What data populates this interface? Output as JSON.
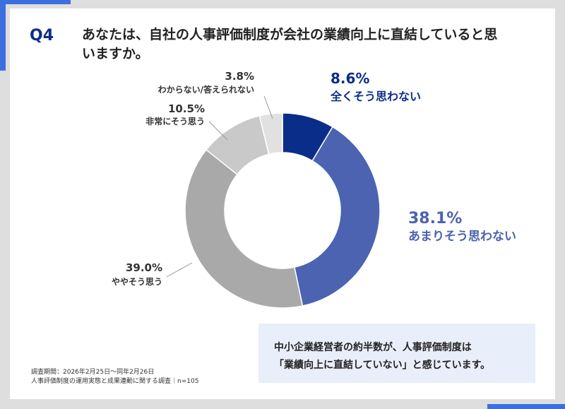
{
  "question_label": "Q4",
  "chart_data": {
    "type": "pie",
    "title": "あなたは、自社の人事評価制度が会社の業績向上に直結していると思いますか。",
    "categories": [
      "全くそう思わない",
      "あまりそう思わない",
      "ややそう思う",
      "非常にそう思う",
      "わからない/答えられない"
    ],
    "values": [
      8.6,
      38.1,
      39.0,
      10.5,
      3.8
    ],
    "value_labels": [
      "8.6%",
      "38.1%",
      "39.0%",
      "10.5%",
      "3.8%"
    ],
    "colors": [
      "#0b2d8a",
      "#4b63b1",
      "#a9a9a9",
      "#c9c9c9",
      "#e1e1e1"
    ]
  },
  "note": [
    "中小企業経営者の約半数が、人事評価制度は",
    "「業績向上に直結していない」と感じています。"
  ],
  "footnote": [
    "調査期間：2026年2月25日～同年2月26日",
    "人事評価制度の運用実態と成果連動に関する調査｜n=105"
  ]
}
